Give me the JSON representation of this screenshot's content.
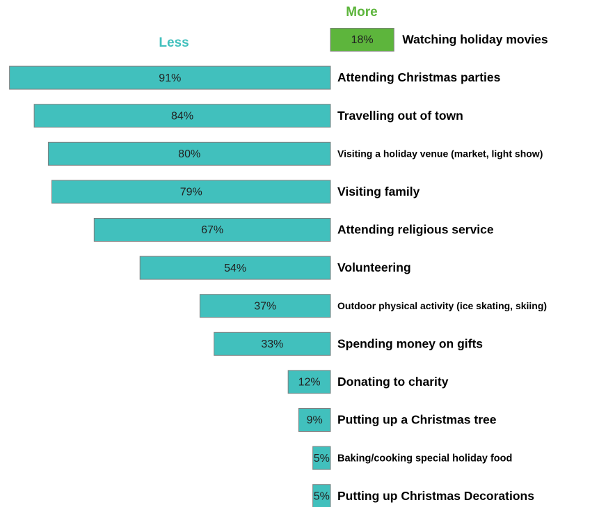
{
  "chart_data": {
    "type": "diverging-bar",
    "categories": [
      "Watching holiday movies",
      "Attending Christmas parties",
      "Travelling out of town",
      "Visiting a holiday venue (market, light show)",
      "Visiting family",
      "Attending religious service",
      "Volunteering",
      "Outdoor physical activity (ice skating, skiing)",
      "Spending money on gifts",
      "Donating to charity",
      "Putting up a Christmas tree",
      "Baking/cooking special holiday food",
      "Putting up Christmas Decorations"
    ],
    "series": [
      {
        "name": "Less",
        "color": "#41c0bd",
        "values": [
          null,
          91,
          84,
          80,
          79,
          67,
          54,
          37,
          33,
          12,
          9,
          5,
          5
        ],
        "value_labels": [
          null,
          "91%",
          "84%",
          "80%",
          "79%",
          "67%",
          "54%",
          "37%",
          "33%",
          "12%",
          "9%",
          "5%",
          "5%"
        ]
      },
      {
        "name": "More",
        "color": "#5db53c",
        "values": [
          18,
          null,
          null,
          null,
          null,
          null,
          null,
          null,
          null,
          null,
          null,
          null,
          null
        ],
        "value_labels": [
          "18%",
          null,
          null,
          null,
          null,
          null,
          null,
          null,
          null,
          null,
          null,
          null,
          null
        ]
      }
    ]
  }
}
